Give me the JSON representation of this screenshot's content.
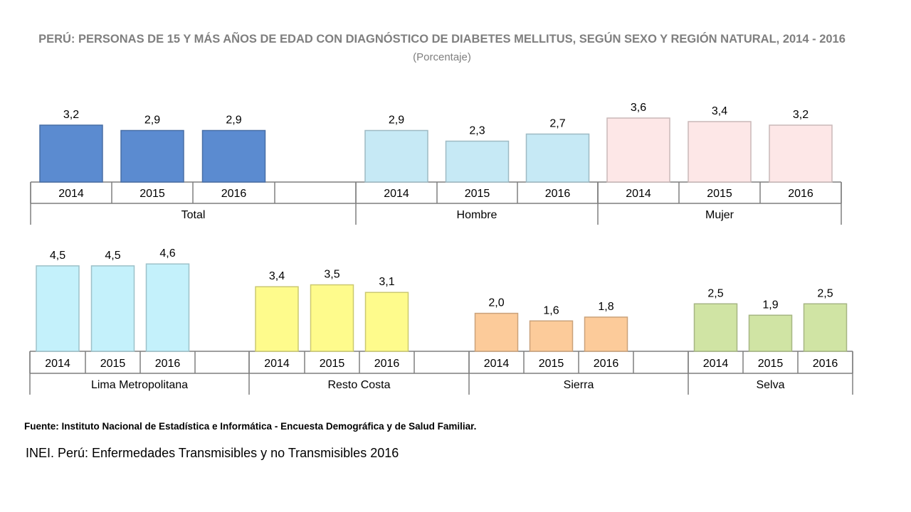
{
  "page": {
    "title": "PERÚ: PERSONAS DE 15 Y MÁS AÑOS DE EDAD CON DIAGNÓSTICO DE  DIABETES MELLITUS, SEGÚN SEXO Y REGIÓN NATURAL, 2014 - 2016",
    "subtitle": "(Porcentaje)",
    "source": "Fuente: Instituto Nacional de Estadística e Informática - Encuesta Demográfica y de Salud Familiar.",
    "caption": "INEI. Perú:  Enfermedades Transmisibles y no Transmisibles 2016"
  },
  "chart_data": [
    {
      "type": "bar",
      "title": "PERÚ: PERSONAS DE 15 Y MÁS AÑOS DE EDAD CON DIAGNÓSTICO DE  DIABETES MELLITUS, SEGÚN SEXO Y REGIÓN NATURAL, 2014 - 2016",
      "subtitle": "(Porcentaje)",
      "categories": [
        "2014",
        "2015",
        "2016"
      ],
      "groups": [
        {
          "label": "Total",
          "values": [
            3.2,
            2.9,
            2.9
          ],
          "labels": [
            "3,2",
            "2,9",
            "2,9"
          ],
          "color": "#5b8bd0"
        },
        {
          "label": "Hombre",
          "values": [
            2.9,
            2.3,
            2.7
          ],
          "labels": [
            "2,9",
            "2,3",
            "2,7"
          ],
          "color": "#c6e9f5"
        },
        {
          "label": "Mujer",
          "values": [
            3.6,
            3.4,
            3.2
          ],
          "labels": [
            "3,6",
            "3,4",
            "3,2"
          ],
          "color": "#fde7e7"
        }
      ],
      "grid": false,
      "legend": "none"
    },
    {
      "type": "bar",
      "categories": [
        "2014",
        "2015",
        "2016"
      ],
      "groups": [
        {
          "label": "Lima Metropolitana",
          "values": [
            4.5,
            4.5,
            4.6
          ],
          "labels": [
            "4,5",
            "4,5",
            "4,6"
          ],
          "color": "#c4f1fb"
        },
        {
          "label": "Resto Costa",
          "values": [
            3.4,
            3.5,
            3.1
          ],
          "labels": [
            "3,4",
            "3,5",
            "3,1"
          ],
          "color": "#fefb8c"
        },
        {
          "label": "Sierra",
          "values": [
            2.0,
            1.6,
            1.8
          ],
          "labels": [
            "2,0",
            "1,6",
            "1,8"
          ],
          "color": "#fccb9a"
        },
        {
          "label": "Selva",
          "values": [
            2.5,
            1.9,
            2.5
          ],
          "labels": [
            "2,5",
            "1,9",
            "2,5"
          ],
          "color": "#d0e4a4"
        }
      ],
      "grid": false,
      "legend": "none"
    }
  ]
}
